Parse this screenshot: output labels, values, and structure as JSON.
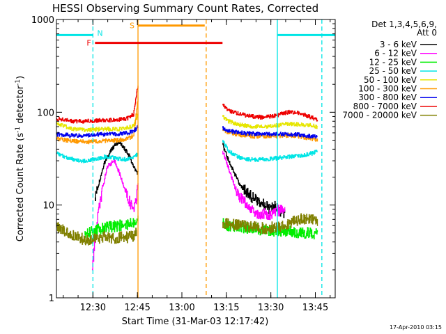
{
  "chart_data": {
    "type": "line",
    "title": "HESSI Observing Summary Count Rates, Corrected",
    "xlabel": "Start Time (31-Mar-03 12:17:42)",
    "ylabel": "Corrected Count Rate (s⁻¹ detector⁻¹)",
    "ylabel_prefix": "Corrected Count Rate (s",
    "ylabel_sup1": "-1",
    "ylabel_mid": " detector",
    "ylabel_sup2": "-1",
    "ylabel_suffix": ")",
    "x_unit": "minutes since 12:17:42",
    "xlim": [
      0,
      94
    ],
    "yscale": "log",
    "ylim": [
      1,
      1000
    ],
    "x_ticks": [
      {
        "label": "12:30",
        "value": 12.3
      },
      {
        "label": "12:45",
        "value": 27.3
      },
      {
        "label": "13:00",
        "value": 42.3
      },
      {
        "label": "13:15",
        "value": 57.3
      },
      {
        "label": "13:30",
        "value": 72.3
      },
      {
        "label": "13:45",
        "value": 87.3
      }
    ],
    "y_ticks": [
      {
        "label": "1",
        "value": 1
      },
      {
        "label": "10",
        "value": 10
      },
      {
        "label": "100",
        "value": 100
      },
      {
        "label": "1000",
        "value": 1000
      }
    ],
    "legend_header": [
      "Det 1,3,4,5,6,9,",
      "Att 0"
    ],
    "legend_position": "right",
    "series": [
      {
        "name": "3 - 6 keV",
        "color": "#000000",
        "x": [
          0,
          10,
          13,
          16,
          19,
          21,
          23,
          24.5,
          25.5,
          26.5,
          27.5,
          55,
          56,
          58,
          60,
          62,
          64,
          66,
          68,
          70,
          72,
          74,
          75,
          76,
          77
        ],
        "y": [
          0,
          0,
          12,
          28,
          42,
          48,
          40,
          34,
          28,
          24,
          22,
          0,
          45,
          30,
          22,
          16,
          14,
          12,
          11,
          10,
          9,
          10,
          9,
          8,
          8
        ]
      },
      {
        "name": "6 - 12 keV",
        "color": "#ff00ff",
        "x": [
          0,
          10,
          12,
          14,
          17,
          19.5,
          21,
          23,
          24.5,
          26,
          27,
          27.5,
          55,
          56,
          58,
          60,
          62,
          64,
          66,
          68,
          70,
          72,
          74,
          76,
          77
        ],
        "y": [
          0,
          0,
          2,
          8,
          26,
          30,
          23,
          15,
          11,
          9,
          12,
          17,
          0,
          38,
          25,
          16,
          12,
          10,
          9,
          8,
          8,
          8,
          8.5,
          9,
          8.5
        ]
      },
      {
        "name": "12 - 25 keV",
        "color": "#00ee00",
        "x": [
          0,
          8,
          9.5,
          12,
          15,
          18,
          21,
          24,
          26,
          27,
          27.5,
          55,
          56,
          58,
          62,
          66,
          70,
          74,
          78,
          82,
          86,
          88
        ],
        "y": [
          0,
          0,
          4.8,
          5.2,
          5.6,
          5.8,
          6.0,
          6.2,
          6.5,
          7,
          8,
          0,
          6.5,
          6.0,
          5.8,
          5.6,
          5.4,
          5.2,
          5.2,
          5.0,
          5.0,
          4.8
        ]
      },
      {
        "name": "25 - 50 keV",
        "color": "#00e5e5",
        "x": [
          0,
          2,
          4,
          6,
          8,
          10,
          12,
          14,
          16,
          18,
          20,
          22,
          24,
          26,
          27.5,
          55,
          56,
          58,
          62,
          66,
          70,
          74,
          78,
          82,
          86,
          88
        ],
        "y": [
          36,
          34,
          32,
          31,
          30,
          30,
          31,
          32,
          33,
          33,
          32,
          31,
          31,
          33,
          36,
          0,
          50,
          38,
          32,
          31,
          31,
          32,
          33,
          34,
          36,
          38
        ]
      },
      {
        "name": "50 - 100 keV",
        "color": "#e6e600",
        "x": [
          0,
          3,
          6,
          9,
          12,
          15,
          18,
          21,
          24,
          26,
          27.5,
          55,
          56,
          58,
          62,
          66,
          70,
          74,
          78,
          82,
          86,
          88
        ],
        "y": [
          75,
          70,
          66,
          65,
          65,
          66,
          66,
          66,
          68,
          72,
          95,
          0,
          90,
          80,
          73,
          70,
          70,
          72,
          75,
          74,
          72,
          70
        ]
      },
      {
        "name": "100 - 300 keV",
        "color": "#ff9900",
        "x": [
          0,
          3,
          6,
          9,
          12,
          15,
          18,
          21,
          24,
          26,
          27.5,
          55,
          56,
          58,
          62,
          66,
          70,
          74,
          78,
          82,
          86,
          88
        ],
        "y": [
          52,
          50,
          49,
          48,
          48,
          49,
          50,
          50,
          52,
          56,
          140,
          0,
          66,
          60,
          57,
          55,
          55,
          55,
          56,
          55,
          52,
          50
        ]
      },
      {
        "name": "300 - 800 keV",
        "color": "#0000ee",
        "x": [
          0,
          3,
          6,
          9,
          12,
          15,
          18,
          21,
          24,
          26,
          27.5,
          55,
          56,
          58,
          62,
          66,
          70,
          74,
          78,
          82,
          86,
          88
        ],
        "y": [
          58,
          57,
          56,
          56,
          57,
          58,
          58,
          58,
          60,
          62,
          70,
          0,
          68,
          63,
          60,
          59,
          58,
          58,
          58,
          57,
          55,
          54
        ]
      },
      {
        "name": "800 - 7000 keV",
        "color": "#ee0000",
        "x": [
          0,
          3,
          6,
          9,
          12,
          15,
          18,
          21,
          24,
          26,
          27.5,
          55,
          56,
          58,
          62,
          66,
          70,
          74,
          78,
          82,
          86,
          88
        ],
        "y": [
          85,
          82,
          80,
          80,
          81,
          82,
          82,
          83,
          86,
          95,
          200,
          0,
          120,
          105,
          95,
          90,
          88,
          92,
          100,
          98,
          88,
          82
        ]
      },
      {
        "name": "7000 - 20000 keV",
        "color": "#808000",
        "x": [
          0,
          2,
          4,
          6,
          8,
          10,
          12,
          14,
          16,
          18,
          20,
          22,
          24,
          26,
          27,
          55,
          56,
          58,
          62,
          66,
          70,
          74,
          78,
          80,
          82,
          84,
          86,
          88
        ],
        "y": [
          5.8,
          5.4,
          5.0,
          4.6,
          4.4,
          4.2,
          4.3,
          4.4,
          4.6,
          4.5,
          4.4,
          4.6,
          4.5,
          4.6,
          5,
          0,
          6.5,
          6.3,
          6.0,
          5.8,
          5.6,
          5.8,
          6.2,
          6.8,
          7.0,
          7.2,
          7.0,
          6.8
        ]
      }
    ],
    "flags": [
      {
        "label": "N",
        "color": "#00e5e5",
        "y": 680,
        "segments": [
          [
            0,
            12.3
          ],
          [
            74.5,
            94
          ]
        ]
      },
      {
        "label": "S",
        "color": "#ff9900",
        "y": 860,
        "segments": [
          [
            27.5,
            50
          ]
        ]
      },
      {
        "label": "F",
        "color": "#ee0000",
        "y": 560,
        "segments": [
          [
            13,
            56
          ]
        ]
      }
    ],
    "vlines": [
      {
        "x": 12.3,
        "color": "#00e5e5",
        "dashed": true
      },
      {
        "x": 27.5,
        "color": "#ff9900",
        "dashed": false
      },
      {
        "x": 50.5,
        "color": "#ff9900",
        "dashed": true
      },
      {
        "x": 74.5,
        "color": "#00e5e5",
        "dashed": false
      },
      {
        "x": 89.5,
        "color": "#00e5e5",
        "dashed": true
      }
    ],
    "timestamp": "17-Apr-2010 03:15"
  }
}
